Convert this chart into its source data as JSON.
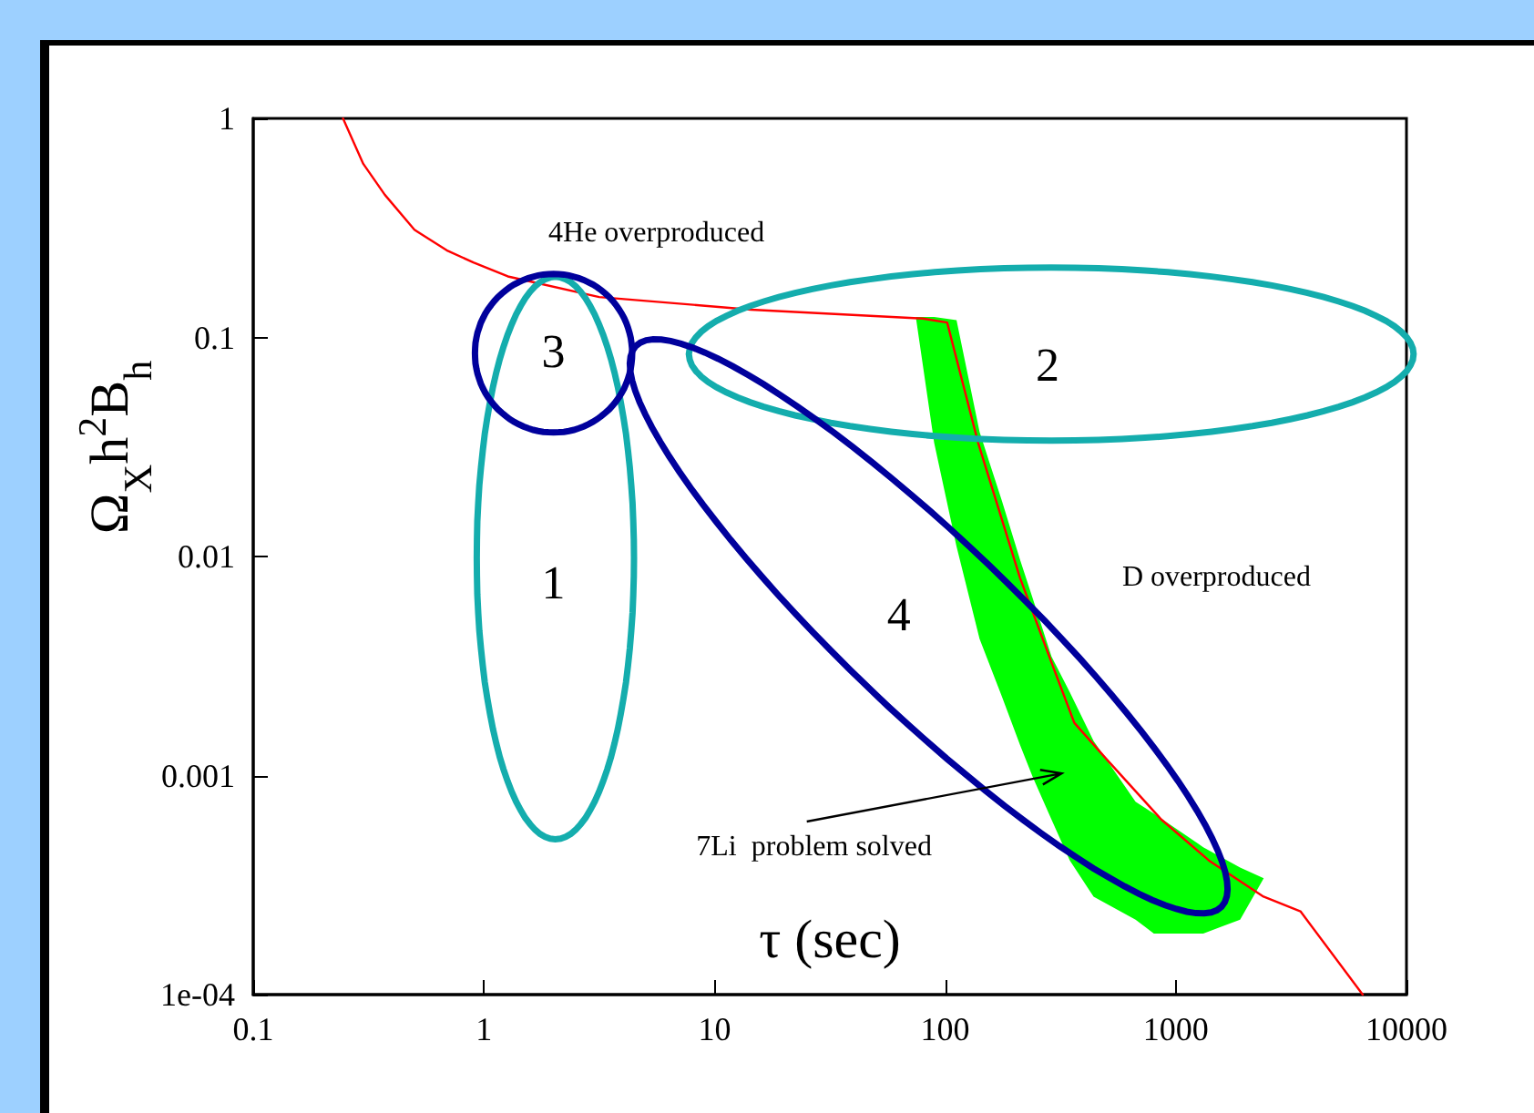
{
  "chart_data": {
    "type": "line",
    "xlabel": "τ (sec)",
    "ylabel": "Ω$_{X}$h$^{2}$B$_{h}$",
    "log": "xy",
    "xlim": [
      0.1,
      10000
    ],
    "ylim": [
      0.0001,
      1
    ],
    "xticks": [
      0.1,
      1,
      10,
      100,
      1000,
      10000
    ],
    "yticks": [
      {
        "value": 0.0001,
        "label": "1e-04"
      },
      0.001,
      0.01,
      0.1,
      1
    ],
    "grid": false,
    "marker": "none",
    "line_style": "solid",
    "series": [
      {
        "color": "#ff0000",
        "x": [
          0.245,
          0.3,
          0.372,
          0.5,
          0.69,
          0.9,
          1.27,
          3.16,
          14.4,
          80,
          102,
          139,
          211,
          295,
          363,
          500,
          865,
          1390,
          2400,
          3470,
          6460
        ],
        "values": [
          1,
          0.62,
          0.448,
          0.31,
          0.25,
          0.22,
          0.19,
          0.153,
          0.134,
          0.122,
          0.117,
          0.033,
          0.008,
          0.0031,
          0.00174,
          0.00119,
          0.00063,
          0.00041,
          0.00028,
          0.00024,
          0.0001
        ]
      },
      {
        "type": "area",
        "color": "#00ff00",
        "x": [
          74.6,
          89.6,
          112,
          141,
          176,
          211,
          240,
          289,
          347,
          440,
          669,
          803,
          1245,
          1315,
          1900,
          2405
        ],
        "values": [
          null,
          null,
          null,
          null,
          null,
          null,
          null,
          null,
          null,
          null,
          null,
          null,
          null,
          null,
          null,
          null
        ],
        "upper": [
          0.124,
          0.124,
          0.12,
          0.037,
          0.018,
          0.0097,
          0.0064,
          0.0035,
          0.0024,
          0.00144,
          0.00076,
          0.00067,
          0.00049,
          0.00047,
          0.00038,
          0.00034
        ],
        "lower": [
          0.124,
          0.033,
          0.0111,
          0.0042,
          0.0023,
          0.00138,
          0.00098,
          0.00063,
          0.00041,
          0.00028,
          0.00022,
          0.00019,
          0.00019,
          0.00019,
          0.00022,
          0.00034
        ]
      }
    ],
    "annotations": [
      "4He overproduced",
      "D overproduced",
      "7Li  problem solved",
      "1",
      "2",
      "3",
      "4"
    ]
  }
}
